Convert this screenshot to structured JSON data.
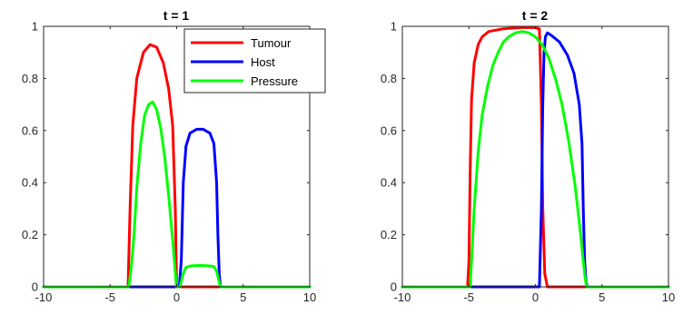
{
  "chart_data": [
    {
      "type": "line",
      "title": "t = 1",
      "xlim": [
        -10,
        10
      ],
      "ylim": [
        0,
        1
      ],
      "xticks": [
        "-10",
        "-5",
        "0",
        "5",
        "10"
      ],
      "yticks": [
        "0",
        "0.2",
        "0.4",
        "0.6",
        "0.8",
        "1"
      ],
      "grid": false,
      "legend": {
        "placement": "top-right",
        "entries": [
          "Tumour",
          "Host",
          "Pressure"
        ]
      },
      "series": [
        {
          "name": "Tumour",
          "color": "#ff0000",
          "x": [
            -10,
            -3.65,
            -3.5,
            -3.3,
            -3.0,
            -2.5,
            -2.0,
            -1.5,
            -1.0,
            -0.6,
            -0.3,
            -0.1,
            0.0,
            0.1,
            10
          ],
          "y": [
            0,
            0,
            0.3,
            0.62,
            0.8,
            0.9,
            0.93,
            0.92,
            0.86,
            0.76,
            0.62,
            0.3,
            0,
            0,
            0
          ]
        },
        {
          "name": "Host",
          "color": "#0000ff",
          "x": [
            -10,
            0.2,
            0.35,
            0.5,
            0.7,
            1.0,
            1.5,
            2.0,
            2.5,
            2.8,
            3.0,
            3.1,
            3.2,
            3.3,
            10
          ],
          "y": [
            0,
            0,
            0.1,
            0.4,
            0.54,
            0.59,
            0.605,
            0.605,
            0.59,
            0.55,
            0.4,
            0.2,
            0.05,
            0,
            0
          ]
        },
        {
          "name": "Pressure",
          "color": "#00ff00",
          "x": [
            -10,
            -3.6,
            -3.4,
            -3.2,
            -3.0,
            -2.7,
            -2.4,
            -2.1,
            -1.8,
            -1.5,
            -1.2,
            -0.9,
            -0.6,
            -0.3,
            -0.05,
            0.0,
            0.25,
            0.45,
            0.7,
            1.0,
            1.5,
            2.0,
            2.5,
            2.8,
            3.0,
            3.15,
            3.3,
            10
          ],
          "y": [
            0,
            0,
            0.08,
            0.2,
            0.38,
            0.55,
            0.66,
            0.7,
            0.71,
            0.68,
            0.61,
            0.5,
            0.35,
            0.18,
            0.02,
            0,
            0,
            0.045,
            0.075,
            0.08,
            0.082,
            0.082,
            0.08,
            0.078,
            0.06,
            0.03,
            0,
            0
          ]
        }
      ]
    },
    {
      "type": "line",
      "title": "t = 2",
      "xlim": [
        -10,
        10
      ],
      "ylim": [
        0,
        1
      ],
      "xticks": [
        "-10",
        "-5",
        "0",
        "5",
        "10"
      ],
      "yticks": [
        "0",
        "0.2",
        "0.4",
        "0.6",
        "0.8",
        "1"
      ],
      "grid": false,
      "series": [
        {
          "name": "Tumour",
          "color": "#ff0000",
          "x": [
            -10,
            -5.1,
            -5.0,
            -4.9,
            -4.8,
            -4.6,
            -4.3,
            -4.0,
            -3.5,
            -3.0,
            -2.5,
            -2.0,
            -1.0,
            0.0,
            0.3,
            0.45,
            0.55,
            0.7,
            0.9,
            10
          ],
          "y": [
            0,
            0,
            0.1,
            0.45,
            0.72,
            0.86,
            0.93,
            0.96,
            0.98,
            0.985,
            0.99,
            0.992,
            0.995,
            0.995,
            0.99,
            0.7,
            0.3,
            0.05,
            0,
            0
          ]
        },
        {
          "name": "Host",
          "color": "#0000ff",
          "x": [
            -10,
            0.3,
            0.45,
            0.55,
            0.65,
            0.75,
            0.9,
            1.2,
            1.8,
            2.4,
            2.9,
            3.3,
            3.5,
            3.6,
            3.7,
            3.8,
            3.9,
            10
          ],
          "y": [
            0,
            0,
            0.3,
            0.7,
            0.9,
            0.96,
            0.975,
            0.965,
            0.94,
            0.89,
            0.82,
            0.7,
            0.55,
            0.3,
            0.1,
            0.02,
            0,
            0
          ]
        },
        {
          "name": "Pressure",
          "color": "#00ff00",
          "x": [
            -10,
            -4.9,
            -4.6,
            -4.3,
            -4.0,
            -3.6,
            -3.2,
            -2.8,
            -2.4,
            -2.0,
            -1.5,
            -1.0,
            -0.5,
            0.0,
            0.5,
            1.0,
            1.5,
            2.0,
            2.5,
            3.0,
            3.4,
            3.6,
            3.75,
            3.85,
            10
          ],
          "y": [
            0,
            0,
            0.3,
            0.52,
            0.66,
            0.77,
            0.85,
            0.9,
            0.94,
            0.96,
            0.975,
            0.98,
            0.975,
            0.96,
            0.93,
            0.88,
            0.8,
            0.7,
            0.56,
            0.38,
            0.2,
            0.1,
            0.03,
            0,
            0
          ]
        }
      ]
    }
  ]
}
